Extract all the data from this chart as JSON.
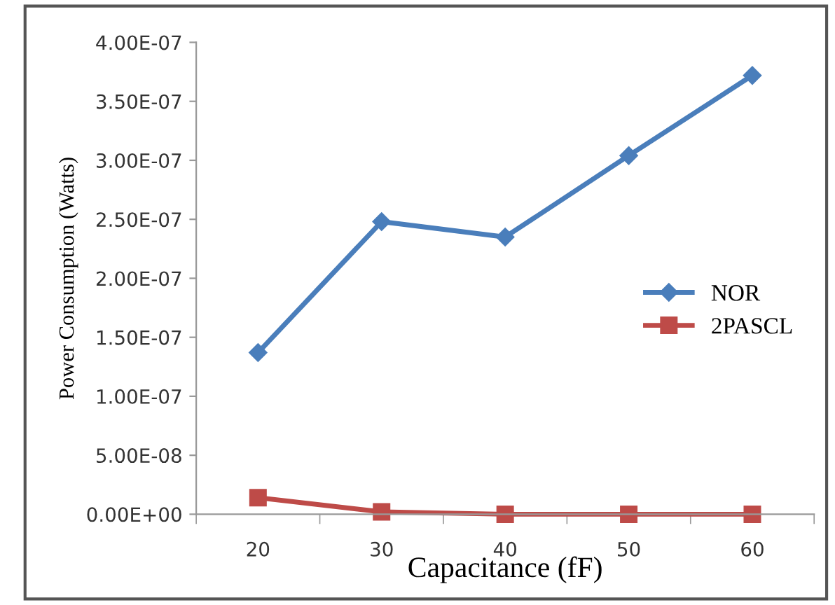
{
  "chart_data": {
    "type": "line",
    "xlabel": "Capacitance (fF)",
    "ylabel": "Power Consumption (Watts)",
    "categories": [
      "20",
      "30",
      "40",
      "50",
      "60"
    ],
    "series": [
      {
        "name": "NOR",
        "color": "#4a7ebb",
        "marker": "diamond",
        "values": [
          1.37e-07,
          2.48e-07,
          2.35e-07,
          3.04e-07,
          3.72e-07
        ]
      },
      {
        "name": "2PASCL",
        "color": "#be4b48",
        "marker": "square",
        "values": [
          1.4e-08,
          2e-09,
          0,
          0,
          0
        ]
      }
    ],
    "ylim": [
      0,
      4e-07
    ],
    "yticks": [
      {
        "value": 0,
        "label": "0.00E+00"
      },
      {
        "value": 5e-08,
        "label": "5.00E-08"
      },
      {
        "value": 1e-07,
        "label": "1.00E-07"
      },
      {
        "value": 1.5e-07,
        "label": "1.50E-07"
      },
      {
        "value": 2e-07,
        "label": "2.00E-07"
      },
      {
        "value": 2.5e-07,
        "label": "2.50E-07"
      },
      {
        "value": 3e-07,
        "label": "3.00E-07"
      },
      {
        "value": 3.5e-07,
        "label": "3.50E-07"
      },
      {
        "value": 4e-07,
        "label": "4.00E-07"
      }
    ],
    "grid": false,
    "legend": "right"
  }
}
